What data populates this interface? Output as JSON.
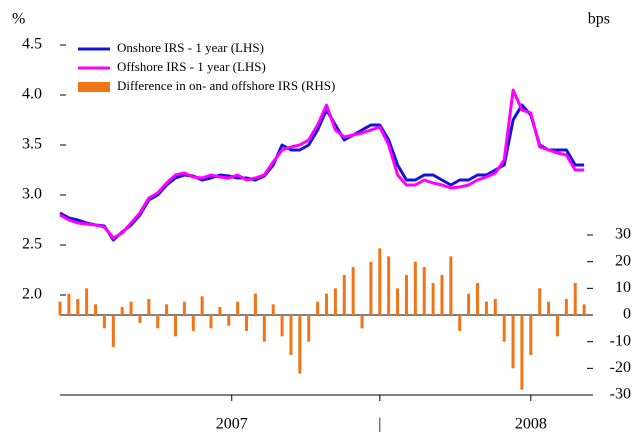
{
  "chart_data": {
    "type": "line_bar_dual",
    "y_unit_label": "%",
    "y2_unit_label": "bps",
    "x": [
      2006.92,
      2006.95,
      2006.98,
      2007.01,
      2007.04,
      2007.07,
      2007.1,
      2007.13,
      2007.16,
      2007.19,
      2007.22,
      2007.25,
      2007.28,
      2007.31,
      2007.34,
      2007.37,
      2007.4,
      2007.43,
      2007.46,
      2007.49,
      2007.52,
      2007.55,
      2007.58,
      2007.61,
      2007.64,
      2007.67,
      2007.7,
      2007.73,
      2007.76,
      2007.79,
      2007.82,
      2007.85,
      2007.88,
      2007.91,
      2007.94,
      2007.97,
      2008.0,
      2008.03,
      2008.06,
      2008.09,
      2008.12,
      2008.15,
      2008.18,
      2008.21,
      2008.24,
      2008.27,
      2008.3,
      2008.33,
      2008.36,
      2008.39,
      2008.42,
      2008.45,
      2008.48,
      2008.51,
      2008.54,
      2008.57,
      2008.6,
      2008.63,
      2008.66,
      2008.69
    ],
    "series": [
      {
        "name": "Onshore IRS - 1 year (LHS)",
        "color": "#1414d8",
        "axis": "y",
        "kind": "line",
        "values": [
          2.82,
          2.77,
          2.75,
          2.72,
          2.7,
          2.69,
          2.55,
          2.63,
          2.7,
          2.8,
          2.95,
          3.0,
          3.1,
          3.17,
          3.2,
          3.19,
          3.15,
          3.17,
          3.2,
          3.19,
          3.17,
          3.17,
          3.15,
          3.19,
          3.3,
          3.5,
          3.45,
          3.45,
          3.5,
          3.65,
          3.85,
          3.7,
          3.55,
          3.6,
          3.65,
          3.7,
          3.7,
          3.55,
          3.3,
          3.15,
          3.15,
          3.2,
          3.2,
          3.15,
          3.1,
          3.15,
          3.15,
          3.2,
          3.2,
          3.25,
          3.3,
          3.75,
          3.9,
          3.8,
          3.5,
          3.45,
          3.45,
          3.45,
          3.3,
          3.3
        ]
      },
      {
        "name": "Offshore IRS - 1 year (LHS)",
        "color": "#ff00ff",
        "axis": "y",
        "kind": "line",
        "values": [
          2.8,
          2.75,
          2.72,
          2.71,
          2.7,
          2.68,
          2.57,
          2.62,
          2.72,
          2.82,
          2.97,
          3.02,
          3.12,
          3.2,
          3.22,
          3.18,
          3.17,
          3.2,
          3.18,
          3.17,
          3.2,
          3.15,
          3.17,
          3.2,
          3.33,
          3.45,
          3.48,
          3.5,
          3.55,
          3.7,
          3.9,
          3.65,
          3.58,
          3.6,
          3.62,
          3.65,
          3.68,
          3.5,
          3.2,
          3.1,
          3.1,
          3.15,
          3.12,
          3.1,
          3.07,
          3.08,
          3.1,
          3.15,
          3.18,
          3.22,
          3.35,
          4.05,
          3.85,
          3.82,
          3.48,
          3.45,
          3.42,
          3.4,
          3.25,
          3.25
        ]
      },
      {
        "name": "Difference in on- and offshore IRS (RHS)",
        "color": "#f07418",
        "axis": "y2",
        "kind": "bar",
        "values": [
          5,
          8,
          6,
          10,
          4,
          -5,
          -12,
          3,
          5,
          -3,
          6,
          -5,
          4,
          -8,
          5,
          -6,
          7,
          -5,
          3,
          -4,
          5,
          -6,
          8,
          -10,
          4,
          -8,
          -15,
          -22,
          -10,
          5,
          8,
          10,
          15,
          18,
          -5,
          20,
          25,
          22,
          10,
          15,
          20,
          18,
          12,
          15,
          22,
          -6,
          8,
          12,
          5,
          6,
          -10,
          -20,
          -28,
          -15,
          10,
          5,
          -8,
          6,
          12,
          4
        ]
      }
    ],
    "xlim": [
      2006.92,
      2008.72
    ],
    "xticks": [
      {
        "value": 2007.5,
        "label": "2007"
      },
      {
        "value": 2008.0,
        "label": "|"
      },
      {
        "value": 2008.51,
        "label": "2008"
      }
    ],
    "ylim": [
      1.0,
      4.5
    ],
    "yticks": [
      {
        "value": 2.0,
        "label": "2.0"
      },
      {
        "value": 2.5,
        "label": "2.5"
      },
      {
        "value": 3.0,
        "label": "3.0"
      },
      {
        "value": 3.5,
        "label": "3.5"
      },
      {
        "value": 4.0,
        "label": "4.0"
      },
      {
        "value": 4.5,
        "label": "4.5"
      }
    ],
    "y2lim": [
      -30,
      101.25
    ],
    "y2ticks": [
      -30,
      -20,
      -10,
      0,
      10,
      20,
      30
    ],
    "legend": "top-left"
  }
}
